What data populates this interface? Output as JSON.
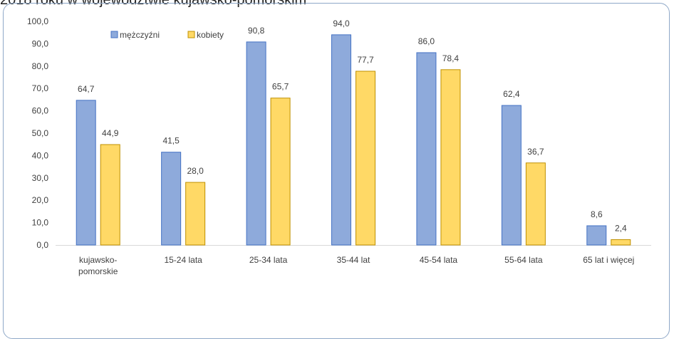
{
  "header": {
    "title": "2018 roku w województwie kujawsko-pomorskim"
  },
  "chart_data": {
    "type": "bar",
    "title": "",
    "xlabel": "",
    "ylabel": "",
    "ylim": [
      0,
      100
    ],
    "yticks": [
      "0,0",
      "10,0",
      "20,0",
      "30,0",
      "40,0",
      "50,0",
      "60,0",
      "70,0",
      "80,0",
      "90,0",
      "100,0"
    ],
    "categories": [
      [
        "kujawsko-",
        "pomorskie"
      ],
      [
        "15-24 lata"
      ],
      [
        "25-34 lata"
      ],
      [
        "35-44 lat"
      ],
      [
        "45-54 lata"
      ],
      [
        "55-64 lata"
      ],
      [
        "65 lat i więcej"
      ]
    ],
    "series": [
      {
        "name": "mężczyźni",
        "color": "#8eaadb",
        "stroke": "#4472c4",
        "values": [
          64.7,
          41.5,
          90.8,
          94.0,
          86.0,
          62.4,
          8.6
        ],
        "labels": [
          "64,7",
          "41,5",
          "90,8",
          "94,0",
          "86,0",
          "62,4",
          "8,6"
        ]
      },
      {
        "name": "kobiety",
        "color": "#ffd966",
        "stroke": "#bf9000",
        "values": [
          44.9,
          28.0,
          65.7,
          77.7,
          78.4,
          36.7,
          2.4
        ],
        "labels": [
          "44,9",
          "28,0",
          "65,7",
          "77,7",
          "78,4",
          "36,7",
          "2,4"
        ]
      }
    ],
    "legend": "top-left",
    "grid": false
  }
}
